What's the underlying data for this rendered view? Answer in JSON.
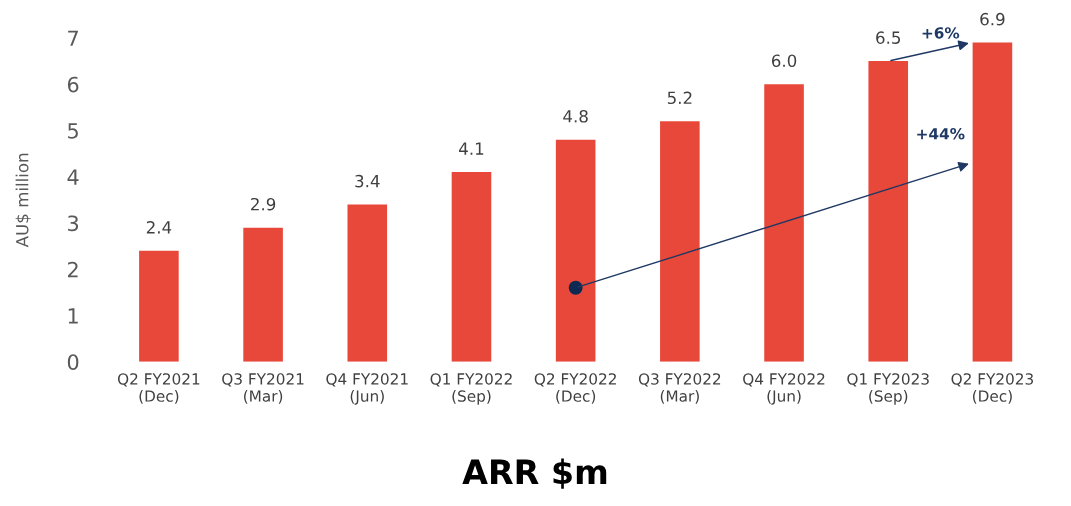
{
  "chart_data": {
    "type": "bar",
    "title": "ARR $m",
    "ylabel": "AU$ million",
    "categories": [
      "Q2 FY2021\n(Dec)",
      "Q3 FY2021\n(Mar)",
      "Q4 FY2021\n(Jun)",
      "Q1 FY2022\n(Sep)",
      "Q2 FY2022\n(Dec)",
      "Q3 FY2022\n(Mar)",
      "Q4 FY2022\n(Jun)",
      "Q1 FY2023\n(Sep)",
      "Q2 FY2023\n(Dec)"
    ],
    "values": [
      2.4,
      2.9,
      3.4,
      4.1,
      4.8,
      5.2,
      6.0,
      6.5,
      6.9
    ],
    "value_labels": [
      "2.4",
      "2.9",
      "3.4",
      "4.1",
      "4.8",
      "5.2",
      "6.0",
      "6.5",
      "6.9"
    ],
    "color": "#e8483a",
    "ylim": [
      0,
      7
    ],
    "yticks": [
      0,
      1,
      2,
      3,
      4,
      5,
      6,
      7
    ],
    "grid": false,
    "legend": false,
    "annotations": [
      "+6%",
      "+44%"
    ]
  }
}
